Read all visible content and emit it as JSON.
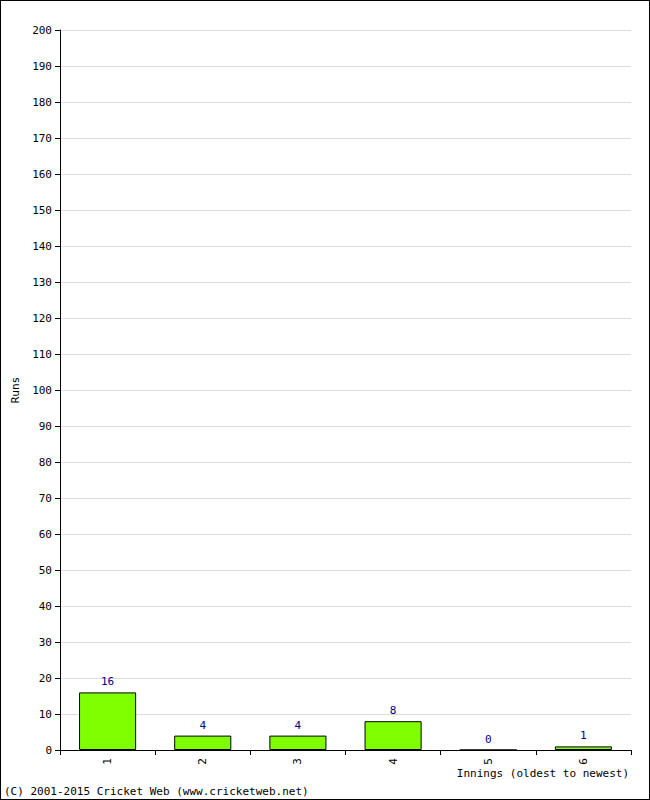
{
  "chart_data": {
    "type": "bar",
    "categories": [
      "1",
      "2",
      "3",
      "4",
      "5",
      "6"
    ],
    "values": [
      16,
      4,
      4,
      8,
      0,
      1
    ],
    "color": "#80ff00",
    "ylim": [
      0,
      200
    ],
    "yticks": [
      0,
      10,
      20,
      30,
      40,
      50,
      60,
      70,
      80,
      90,
      100,
      110,
      120,
      130,
      140,
      150,
      160,
      170,
      180,
      190,
      200
    ],
    "grid": true,
    "data_labels": true,
    "y_label": "Runs",
    "x_label": "Innings (oldest to newest)",
    "footer": "(C) 2001-2015 Cricket Web (www.cricketweb.net)"
  }
}
